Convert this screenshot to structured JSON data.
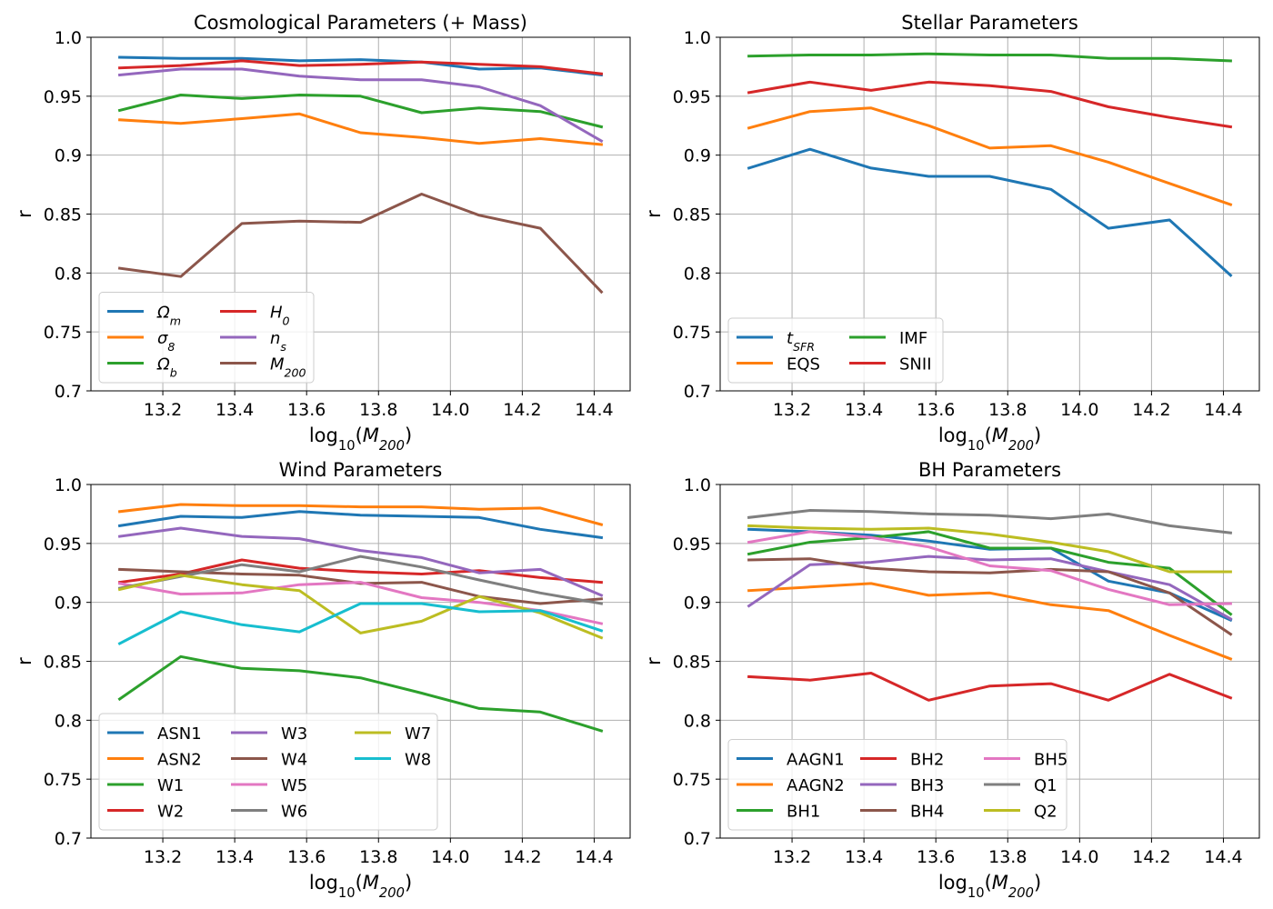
{
  "chart_data": [
    {
      "type": "line",
      "title": "Cosmological Parameters (+ Mass)",
      "xlabel": "log₁₀(M₂₀₀)",
      "xlabel_base": "log",
      "xlabel_sub": "10",
      "xlabel_var": "M",
      "xlabel_var_sub": "200",
      "ylabel": "r",
      "xlim": [
        13.0,
        14.5
      ],
      "ylim": [
        0.7,
        1.0
      ],
      "xticks": [
        13.2,
        13.4,
        13.6,
        13.8,
        14.0,
        14.2,
        14.4
      ],
      "xtick_labels": [
        "13.2",
        "13.4",
        "13.6",
        "13.8",
        "14.0",
        "14.2",
        "14.4"
      ],
      "yticks": [
        0.7,
        0.75,
        0.8,
        0.85,
        0.9,
        0.95,
        1.0
      ],
      "ytick_labels": [
        "0.7",
        "0.75",
        "0.8",
        "0.85",
        "0.9",
        "0.95",
        "1.0"
      ],
      "grid": true,
      "legend_position": "lower-left",
      "legend_columns": 2,
      "x": [
        13.08,
        13.25,
        13.42,
        13.58,
        13.75,
        13.92,
        14.08,
        14.25,
        14.42
      ],
      "series": [
        {
          "name": "Ωm",
          "base": "Ω",
          "sub": "m",
          "color": "#1f77b4",
          "values": [
            0.983,
            0.982,
            0.982,
            0.98,
            0.981,
            0.979,
            0.973,
            0.974,
            0.968
          ]
        },
        {
          "name": "σ8",
          "base": "σ",
          "sub": "8",
          "color": "#ff7f0e",
          "values": [
            0.93,
            0.927,
            0.931,
            0.935,
            0.919,
            0.915,
            0.91,
            0.914,
            0.909
          ]
        },
        {
          "name": "Ωb",
          "base": "Ω",
          "sub": "b",
          "color": "#2ca02c",
          "values": [
            0.938,
            0.951,
            0.948,
            0.951,
            0.95,
            0.936,
            0.94,
            0.937,
            0.924
          ]
        },
        {
          "name": "H0",
          "base": "H",
          "sub": "0",
          "color": "#d62728",
          "values": [
            0.974,
            0.976,
            0.98,
            0.976,
            0.977,
            0.979,
            0.977,
            0.975,
            0.969
          ]
        },
        {
          "name": "ns",
          "base": "n",
          "sub": "s",
          "color": "#9467bd",
          "values": [
            0.968,
            0.973,
            0.973,
            0.967,
            0.964,
            0.964,
            0.958,
            0.942,
            0.912
          ]
        },
        {
          "name": "M200",
          "base": "M",
          "sub": "200",
          "color": "#8c564b",
          "values": [
            0.804,
            0.797,
            0.842,
            0.844,
            0.843,
            0.867,
            0.849,
            0.838,
            0.784
          ]
        }
      ]
    },
    {
      "type": "line",
      "title": "Stellar Parameters",
      "xlabel": "log₁₀(M₂₀₀)",
      "xlabel_base": "log",
      "xlabel_sub": "10",
      "xlabel_var": "M",
      "xlabel_var_sub": "200",
      "ylabel": "r",
      "xlim": [
        13.0,
        14.5
      ],
      "ylim": [
        0.7,
        1.0
      ],
      "xticks": [
        13.2,
        13.4,
        13.6,
        13.8,
        14.0,
        14.2,
        14.4
      ],
      "xtick_labels": [
        "13.2",
        "13.4",
        "13.6",
        "13.8",
        "14.0",
        "14.2",
        "14.4"
      ],
      "yticks": [
        0.7,
        0.75,
        0.8,
        0.85,
        0.9,
        0.95,
        1.0
      ],
      "ytick_labels": [
        "0.7",
        "0.75",
        "0.8",
        "0.85",
        "0.9",
        "0.95",
        "1.0"
      ],
      "grid": true,
      "legend_position": "lower-left",
      "legend_columns": 2,
      "x": [
        13.08,
        13.25,
        13.42,
        13.58,
        13.75,
        13.92,
        14.08,
        14.25,
        14.42
      ],
      "series": [
        {
          "name": "tSFR",
          "base": "t",
          "sub": "SFR",
          "color": "#1f77b4",
          "values": [
            0.889,
            0.905,
            0.889,
            0.882,
            0.882,
            0.871,
            0.838,
            0.845,
            0.798
          ]
        },
        {
          "name": "EQS",
          "base": "EQS",
          "sub": "",
          "color": "#ff7f0e",
          "values": [
            0.923,
            0.937,
            0.94,
            0.925,
            0.906,
            0.908,
            0.894,
            0.876,
            0.858
          ]
        },
        {
          "name": "IMF",
          "base": "IMF",
          "sub": "",
          "color": "#2ca02c",
          "values": [
            0.984,
            0.985,
            0.985,
            0.986,
            0.985,
            0.985,
            0.982,
            0.982,
            0.98
          ]
        },
        {
          "name": "SNII",
          "base": "SNII",
          "sub": "",
          "color": "#d62728",
          "values": [
            0.953,
            0.962,
            0.955,
            0.962,
            0.959,
            0.954,
            0.941,
            0.932,
            0.924
          ]
        }
      ]
    },
    {
      "type": "line",
      "title": "Wind Parameters",
      "xlabel": "log₁₀(M₂₀₀)",
      "xlabel_base": "log",
      "xlabel_sub": "10",
      "xlabel_var": "M",
      "xlabel_var_sub": "200",
      "ylabel": "r",
      "xlim": [
        13.0,
        14.5
      ],
      "ylim": [
        0.7,
        1.0
      ],
      "xticks": [
        13.2,
        13.4,
        13.6,
        13.8,
        14.0,
        14.2,
        14.4
      ],
      "xtick_labels": [
        "13.2",
        "13.4",
        "13.6",
        "13.8",
        "14.0",
        "14.2",
        "14.4"
      ],
      "yticks": [
        0.7,
        0.75,
        0.8,
        0.85,
        0.9,
        0.95,
        1.0
      ],
      "ytick_labels": [
        "0.7",
        "0.75",
        "0.8",
        "0.85",
        "0.9",
        "0.95",
        "1.0"
      ],
      "grid": true,
      "legend_position": "lower-left",
      "legend_columns": 3,
      "x": [
        13.08,
        13.25,
        13.42,
        13.58,
        13.75,
        13.92,
        14.08,
        14.25,
        14.42
      ],
      "series": [
        {
          "name": "ASN1",
          "base": "ASN1",
          "sub": "",
          "color": "#1f77b4",
          "values": [
            0.965,
            0.973,
            0.972,
            0.977,
            0.974,
            0.973,
            0.972,
            0.962,
            0.955
          ]
        },
        {
          "name": "ASN2",
          "base": "ASN2",
          "sub": "",
          "color": "#ff7f0e",
          "values": [
            0.977,
            0.983,
            0.982,
            0.982,
            0.981,
            0.981,
            0.979,
            0.98,
            0.966
          ]
        },
        {
          "name": "W1",
          "base": "W1",
          "sub": "",
          "color": "#2ca02c",
          "values": [
            0.818,
            0.854,
            0.844,
            0.842,
            0.836,
            0.823,
            0.81,
            0.807,
            0.791
          ]
        },
        {
          "name": "W2",
          "base": "W2",
          "sub": "",
          "color": "#d62728",
          "values": [
            0.917,
            0.924,
            0.936,
            0.929,
            0.926,
            0.924,
            0.927,
            0.921,
            0.917
          ]
        },
        {
          "name": "W3",
          "base": "W3",
          "sub": "",
          "color": "#9467bd",
          "values": [
            0.956,
            0.963,
            0.956,
            0.954,
            0.944,
            0.938,
            0.925,
            0.928,
            0.906
          ]
        },
        {
          "name": "W4",
          "base": "W4",
          "sub": "",
          "color": "#8c564b",
          "values": [
            0.928,
            0.926,
            0.924,
            0.923,
            0.916,
            0.917,
            0.905,
            0.899,
            0.903
          ]
        },
        {
          "name": "W5",
          "base": "W5",
          "sub": "",
          "color": "#e377c2",
          "values": [
            0.916,
            0.907,
            0.908,
            0.915,
            0.917,
            0.904,
            0.9,
            0.893,
            0.882
          ]
        },
        {
          "name": "W6",
          "base": "W6",
          "sub": "",
          "color": "#7f7f7f",
          "values": [
            0.912,
            0.922,
            0.932,
            0.926,
            0.939,
            0.93,
            0.919,
            0.908,
            0.899
          ]
        },
        {
          "name": "W7",
          "base": "W7",
          "sub": "",
          "color": "#bcbd22",
          "values": [
            0.911,
            0.923,
            0.915,
            0.91,
            0.874,
            0.884,
            0.905,
            0.891,
            0.87
          ]
        },
        {
          "name": "W8",
          "base": "W8",
          "sub": "",
          "color": "#17becf",
          "values": [
            0.865,
            0.892,
            0.881,
            0.875,
            0.899,
            0.899,
            0.892,
            0.893,
            0.876
          ]
        }
      ]
    },
    {
      "type": "line",
      "title": "BH Parameters",
      "xlabel": "log₁₀(M₂₀₀)",
      "xlabel_base": "log",
      "xlabel_sub": "10",
      "xlabel_var": "M",
      "xlabel_var_sub": "200",
      "ylabel": "r",
      "xlim": [
        13.0,
        14.5
      ],
      "ylim": [
        0.7,
        1.0
      ],
      "xticks": [
        13.2,
        13.4,
        13.6,
        13.8,
        14.0,
        14.2,
        14.4
      ],
      "xtick_labels": [
        "13.2",
        "13.4",
        "13.6",
        "13.8",
        "14.0",
        "14.2",
        "14.4"
      ],
      "yticks": [
        0.7,
        0.75,
        0.8,
        0.85,
        0.9,
        0.95,
        1.0
      ],
      "ytick_labels": [
        "0.7",
        "0.75",
        "0.8",
        "0.85",
        "0.9",
        "0.95",
        "1.0"
      ],
      "grid": true,
      "legend_position": "lower-left",
      "legend_columns": 3,
      "x": [
        13.08,
        13.25,
        13.42,
        13.58,
        13.75,
        13.92,
        14.08,
        14.25,
        14.42
      ],
      "series": [
        {
          "name": "AAGN1",
          "base": "AAGN1",
          "sub": "",
          "color": "#1f77b4",
          "values": [
            0.962,
            0.96,
            0.957,
            0.952,
            0.945,
            0.946,
            0.918,
            0.908,
            0.885
          ]
        },
        {
          "name": "AAGN2",
          "base": "AAGN2",
          "sub": "",
          "color": "#ff7f0e",
          "values": [
            0.91,
            0.913,
            0.916,
            0.906,
            0.908,
            0.898,
            0.893,
            0.872,
            0.852
          ]
        },
        {
          "name": "BH1",
          "base": "BH1",
          "sub": "",
          "color": "#2ca02c",
          "values": [
            0.941,
            0.951,
            0.955,
            0.96,
            0.946,
            0.946,
            0.934,
            0.929,
            0.89
          ]
        },
        {
          "name": "BH2",
          "base": "BH2",
          "sub": "",
          "color": "#d62728",
          "values": [
            0.837,
            0.834,
            0.84,
            0.817,
            0.829,
            0.831,
            0.817,
            0.839,
            0.819
          ]
        },
        {
          "name": "BH3",
          "base": "BH3",
          "sub": "",
          "color": "#9467bd",
          "values": [
            0.897,
            0.932,
            0.934,
            0.939,
            0.936,
            0.937,
            0.926,
            0.915,
            0.886
          ]
        },
        {
          "name": "BH4",
          "base": "BH4",
          "sub": "",
          "color": "#8c564b",
          "values": [
            0.936,
            0.937,
            0.929,
            0.926,
            0.925,
            0.928,
            0.926,
            0.908,
            0.873
          ]
        },
        {
          "name": "BH5",
          "base": "BH5",
          "sub": "",
          "color": "#e377c2",
          "values": [
            0.951,
            0.96,
            0.955,
            0.947,
            0.931,
            0.927,
            0.911,
            0.898,
            0.899
          ]
        },
        {
          "name": "Q1",
          "base": "Q1",
          "sub": "",
          "color": "#7f7f7f",
          "values": [
            0.972,
            0.978,
            0.977,
            0.975,
            0.974,
            0.971,
            0.975,
            0.965,
            0.959
          ]
        },
        {
          "name": "Q2",
          "base": "Q2",
          "sub": "",
          "color": "#bcbd22",
          "values": [
            0.965,
            0.963,
            0.962,
            0.963,
            0.958,
            0.951,
            0.943,
            0.926,
            0.926
          ]
        }
      ]
    }
  ]
}
